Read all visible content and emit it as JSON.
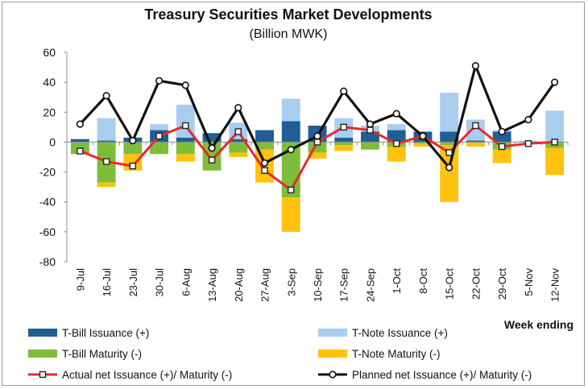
{
  "chart_data": {
    "type": "bar",
    "title": "Treasury Securities Market Developments",
    "subtitle": "(Billion MWK)",
    "xlabel": "Week ending",
    "ylabel": "",
    "ylim": [
      -80,
      60
    ],
    "yticks": [
      "60",
      "40",
      "20",
      "0",
      "-20",
      "-40",
      "-60",
      "-80"
    ],
    "grid": false,
    "legend_position": "bottom",
    "categories": [
      "9-Jul",
      "16-Jul",
      "23-Jul",
      "30-Jul",
      "6-Aug",
      "13-Aug",
      "20-Aug",
      "27-Aug",
      "3-Sep",
      "10-Sep",
      "17-Sep",
      "24-Sep",
      "1-Oct",
      "8-Oct",
      "15-Oct",
      "22-Oct",
      "29-Oct",
      "5-Nov",
      "12-Nov"
    ],
    "series": [
      {
        "name": "T-Bill Issuance (+)",
        "kind": "bar",
        "color": "#1f5f93",
        "values": [
          2,
          1,
          3,
          8,
          3,
          6,
          2,
          8,
          14,
          11,
          3,
          7,
          8,
          7,
          7,
          1,
          7,
          0,
          0
        ]
      },
      {
        "name": "T-Note Issuance (+)",
        "kind": "bar",
        "color": "#a9cdee",
        "values": [
          0,
          15,
          0,
          4,
          22,
          0,
          11,
          0,
          15,
          0,
          13,
          4,
          4,
          0,
          26,
          14,
          1,
          1,
          21
        ]
      },
      {
        "name": "T-Bill Maturity (-)",
        "kind": "bar",
        "color": "#7ebd3a",
        "values": [
          -8,
          -27,
          -8,
          -8,
          -8,
          -19,
          -7,
          -5,
          -37,
          -7,
          -2,
          -5,
          -3,
          -1,
          -2,
          0,
          -5,
          0,
          -4
        ]
      },
      {
        "name": "T-Note Maturity (-)",
        "kind": "bar",
        "color": "#ffc20e",
        "values": [
          0,
          -3,
          -11,
          0,
          -5,
          0,
          -3,
          -22,
          -23,
          -4,
          -4,
          0,
          -10,
          -2,
          -38,
          -3,
          -9,
          0,
          -18
        ]
      },
      {
        "name": "Actual net Issuance (+)/ Maturity (-)",
        "kind": "line",
        "color": "#e8292c",
        "values": [
          -6,
          -13,
          -16,
          4,
          11,
          -12,
          7,
          -19,
          -32,
          0,
          10,
          8,
          -1,
          4,
          -7,
          11,
          -3,
          -1,
          0
        ]
      },
      {
        "name": "Planned net Issuance (+)/ Maturity (-)",
        "kind": "line",
        "color": "#111111",
        "values": [
          12,
          31,
          1,
          41,
          38,
          -4,
          23,
          -14,
          -5,
          4,
          34,
          12,
          19,
          4,
          -17,
          51,
          7,
          15,
          40
        ]
      }
    ]
  }
}
